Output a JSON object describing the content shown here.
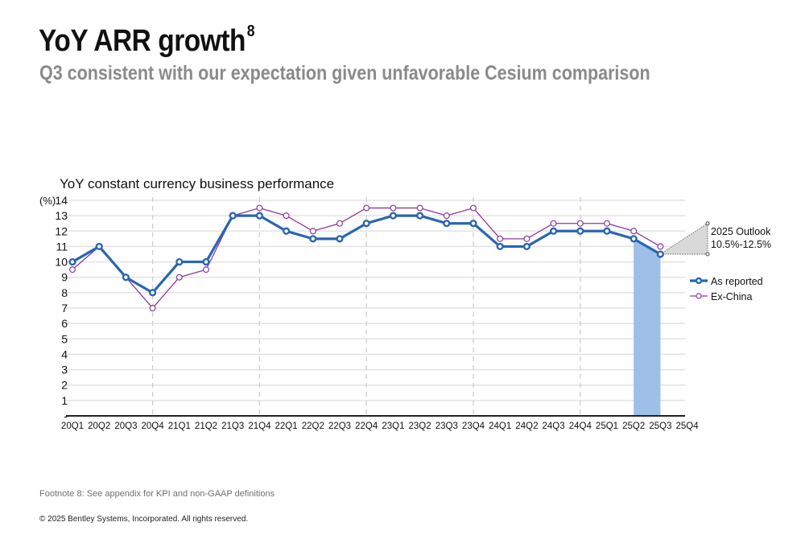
{
  "header": {
    "title": "YoY ARR growth",
    "title_footnote_ref": "8",
    "subtitle": "Q3 consistent with our expectation given unfavorable Cesium comparison"
  },
  "footer": {
    "footnote": "Footnote 8: See appendix for KPI and non-GAAP definitions",
    "copyright": "© 2025 Bentley Systems, Incorporated. All rights reserved."
  },
  "chart_data": {
    "type": "line",
    "title": "YoY constant currency business performance",
    "xlabel": "",
    "ylabel": "(%)",
    "ylim": [
      0,
      14
    ],
    "yticks": [
      "-",
      "1",
      "2",
      "3",
      "4",
      "5",
      "6",
      "7",
      "8",
      "9",
      "10",
      "11",
      "12",
      "13",
      "14"
    ],
    "grid": true,
    "categories": [
      "20Q1",
      "20Q2",
      "20Q3",
      "20Q4",
      "21Q1",
      "21Q2",
      "21Q3",
      "21Q4",
      "22Q1",
      "22Q2",
      "22Q3",
      "22Q4",
      "23Q1",
      "23Q2",
      "23Q3",
      "23Q4",
      "24Q1",
      "24Q2",
      "24Q3",
      "24Q4",
      "25Q1",
      "25Q2",
      "25Q3",
      "25Q4"
    ],
    "year_separators_after": [
      "20Q4",
      "21Q4",
      "22Q4",
      "23Q4",
      "24Q4"
    ],
    "series": [
      {
        "name": "As reported",
        "color": "#2a66b0",
        "values": [
          10,
          11,
          9,
          8,
          10,
          10,
          13,
          13,
          12,
          11.5,
          11.5,
          12.5,
          13,
          13,
          12.5,
          12.5,
          11,
          11,
          12,
          12,
          12,
          11.5,
          10.5,
          null
        ]
      },
      {
        "name": "Ex-China",
        "color": "#8b3a96",
        "values": [
          9.5,
          11,
          9,
          7,
          9,
          9.5,
          13,
          13.5,
          13,
          12,
          12.5,
          13.5,
          13.5,
          13.5,
          13,
          13.5,
          11.5,
          11.5,
          12.5,
          12.5,
          12.5,
          12,
          11,
          null
        ]
      }
    ],
    "highlight": {
      "from": "25Q2",
      "to": "25Q3",
      "color": "#9dbfe8"
    },
    "outlook": {
      "label_line1": "2025 Outlook",
      "label_line2": "10.5%-12.5%",
      "low": 10.5,
      "high": 12.5,
      "color": "#d9d9d9"
    },
    "legend": {
      "placement": "right",
      "entries": [
        "As reported",
        "Ex-China"
      ]
    }
  }
}
